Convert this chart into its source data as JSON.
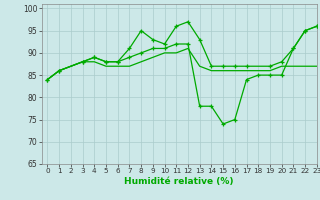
{
  "xlabel": "Humidité relative (%)",
  "background_color": "#cce8e8",
  "grid_color": "#aacccc",
  "line_color": "#00aa00",
  "xlim": [
    -0.5,
    23
  ],
  "ylim": [
    65,
    101
  ],
  "yticks": [
    65,
    70,
    75,
    80,
    85,
    90,
    95,
    100
  ],
  "xticks": [
    0,
    1,
    2,
    3,
    4,
    5,
    6,
    7,
    8,
    9,
    10,
    11,
    12,
    13,
    14,
    15,
    16,
    17,
    18,
    19,
    20,
    21,
    22,
    23
  ],
  "line1_x": [
    0,
    1,
    3,
    4,
    5,
    6,
    7,
    8,
    9,
    10,
    11,
    12,
    13,
    14,
    15,
    16,
    17,
    19,
    20,
    21,
    22,
    23
  ],
  "line1_y": [
    84,
    86,
    88,
    89,
    88,
    88,
    91,
    95,
    93,
    92,
    96,
    97,
    93,
    87,
    87,
    87,
    87,
    87,
    88,
    91,
    95,
    96
  ],
  "line2_x": [
    0,
    1,
    3,
    4,
    5,
    6,
    7,
    8,
    9,
    10,
    11,
    12,
    13,
    14,
    15,
    16,
    17,
    18,
    19,
    20,
    21,
    22,
    23
  ],
  "line2_y": [
    84,
    86,
    88,
    89,
    88,
    88,
    89,
    90,
    91,
    91,
    92,
    92,
    78,
    78,
    74,
    75,
    84,
    85,
    85,
    85,
    91,
    95,
    96
  ],
  "line3_x": [
    0,
    1,
    3,
    4,
    5,
    6,
    7,
    8,
    9,
    10,
    11,
    12,
    13,
    14,
    15,
    16,
    17,
    18,
    19,
    20,
    21,
    22,
    23
  ],
  "line3_y": [
    84,
    86,
    88,
    88,
    87,
    87,
    87,
    88,
    89,
    90,
    90,
    91,
    87,
    86,
    86,
    86,
    86,
    86,
    86,
    87,
    87,
    87,
    87
  ],
  "xlabel_fontsize": 6.5,
  "tick_fontsize": 5.2,
  "linewidth": 0.9,
  "markersize": 3.5
}
